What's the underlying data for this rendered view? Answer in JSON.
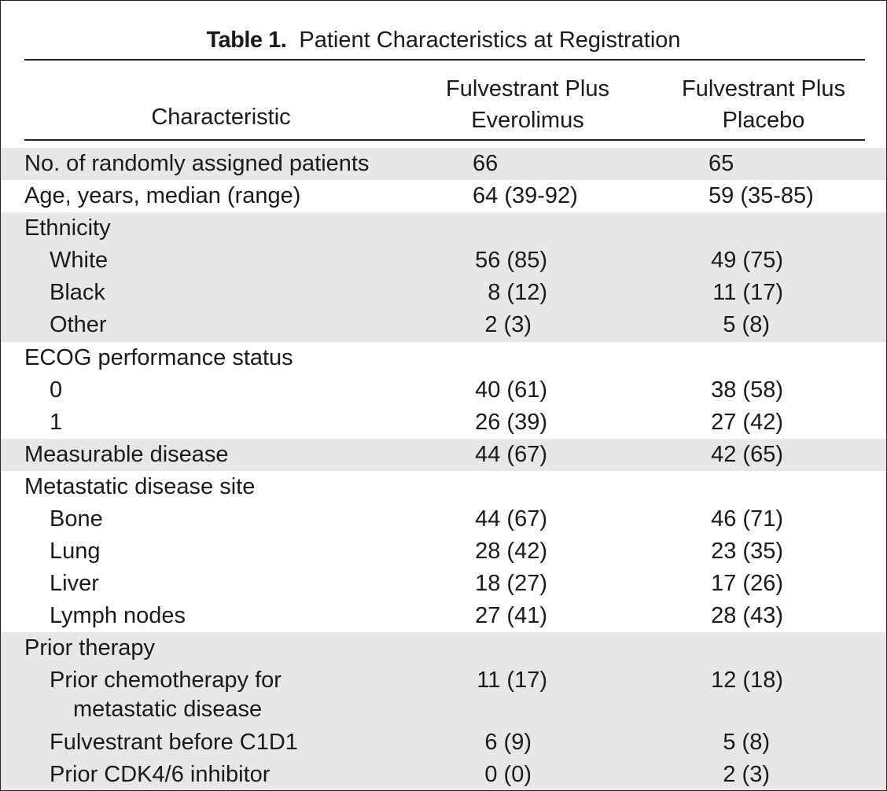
{
  "table": {
    "title_bold": "Table 1.",
    "title_rest": "Patient Characteristics at Registration",
    "headers": {
      "characteristic": "Characteristic",
      "col1_line1": "Fulvestrant Plus",
      "col1_line2": "Everolimus",
      "col2_line1": "Fulvestrant Plus",
      "col2_line2": "Placebo"
    },
    "rows": [
      {
        "label": "No. of randomly assigned patients",
        "v1": "66",
        "v2": "65"
      },
      {
        "label": "Age, years, median (range)",
        "v1": "64 (39-92)",
        "v2": "59 (35-85)"
      },
      {
        "label": "Ethnicity",
        "v1": "",
        "v2": ""
      },
      {
        "label": "White",
        "v1": "56 (85)",
        "v2": "49 (75)"
      },
      {
        "label": "Black",
        "v1": "8 (12)",
        "v2": "11 (17)"
      },
      {
        "label": "Other",
        "v1": "2 (3)",
        "v2": "5 (8)"
      },
      {
        "label": "ECOG performance status",
        "v1": "",
        "v2": ""
      },
      {
        "label": "0",
        "v1": "40 (61)",
        "v2": "38 (58)"
      },
      {
        "label": "1",
        "v1": "26 (39)",
        "v2": "27 (42)"
      },
      {
        "label": "Measurable disease",
        "v1": "44 (67)",
        "v2": "42 (65)"
      },
      {
        "label": "Metastatic disease site",
        "v1": "",
        "v2": ""
      },
      {
        "label": "Bone",
        "v1": "44 (67)",
        "v2": "46 (71)"
      },
      {
        "label": "Lung",
        "v1": "28 (42)",
        "v2": "23 (35)"
      },
      {
        "label": "Liver",
        "v1": "18 (27)",
        "v2": "17 (26)"
      },
      {
        "label": "Lymph nodes",
        "v1": "27 (41)",
        "v2": "28 (43)"
      },
      {
        "label": "Prior therapy",
        "v1": "",
        "v2": ""
      },
      {
        "label": "Prior chemotherapy for",
        "label_line2": "metastatic disease",
        "v1": "11 (17)",
        "v2": "12 (18)"
      },
      {
        "label": "Fulvestrant before C1D1",
        "v1": "6 (9)",
        "v2": "5 (8)"
      },
      {
        "label": "Prior CDK4/6 inhibitor",
        "v1": "0 (0)",
        "v2": "2 (3)"
      }
    ]
  }
}
